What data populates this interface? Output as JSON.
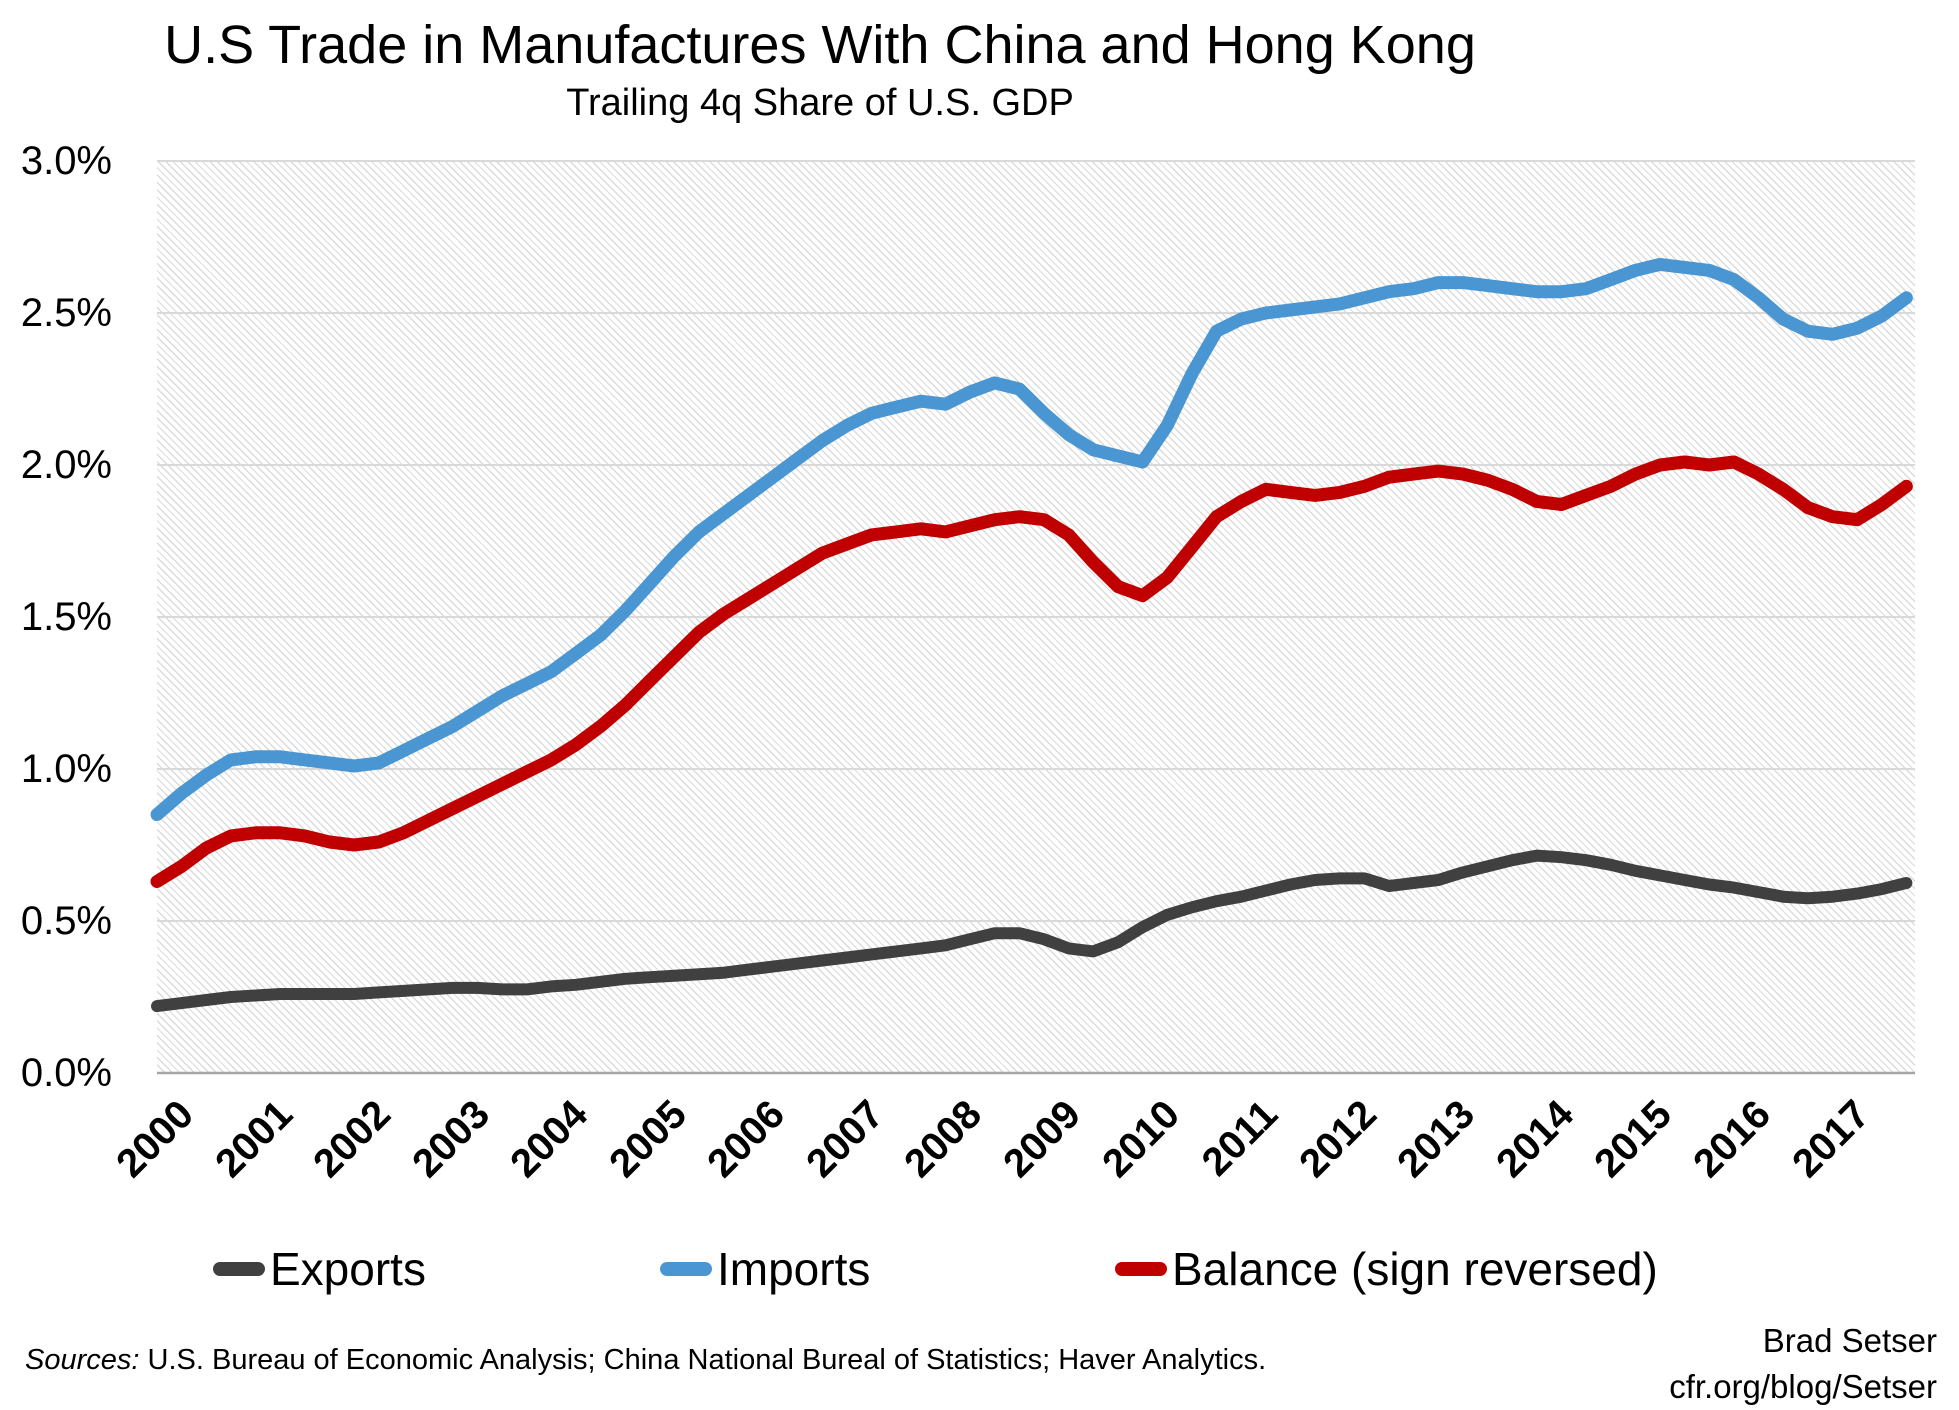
{
  "footer": {
    "sources_label": "Sources:",
    "sources_text": "U.S. Bureau of Economic Analysis; China National Bureal of Statistics; Haver Analytics.",
    "credit_line1": "Brad Setser",
    "credit_line2": "cfr.org/blog/Setser"
  },
  "chart_data": {
    "type": "line",
    "title": "U.S Trade in Manufactures With China and Hong Kong",
    "subtitle": "Trailing 4q Share of U.S. GDP",
    "xlabel": "",
    "ylabel": "",
    "ylim": [
      0.0,
      3.0
    ],
    "grid": "horizontal",
    "legend_position": "bottom",
    "plot_background": "diagonal-hatch",
    "axis_color": "#a6a6a6",
    "gridline_color": "#d9d9d9",
    "yticks": [
      "0.0%",
      "0.5%",
      "1.0%",
      "1.5%",
      "2.0%",
      "2.5%",
      "3.0%"
    ],
    "ytick_values": [
      0.0,
      0.5,
      1.0,
      1.5,
      2.0,
      2.5,
      3.0
    ],
    "xticks": [
      "2000",
      "2001",
      "2002",
      "2003",
      "2004",
      "2005",
      "2006",
      "2007",
      "2008",
      "2009",
      "2010",
      "2011",
      "2012",
      "2013",
      "2014",
      "2015",
      "2016",
      "2017"
    ],
    "categories": [
      "2000Q1",
      "2000Q2",
      "2000Q3",
      "2000Q4",
      "2001Q1",
      "2001Q2",
      "2001Q3",
      "2001Q4",
      "2002Q1",
      "2002Q2",
      "2002Q3",
      "2002Q4",
      "2003Q1",
      "2003Q2",
      "2003Q3",
      "2003Q4",
      "2004Q1",
      "2004Q2",
      "2004Q3",
      "2004Q4",
      "2005Q1",
      "2005Q2",
      "2005Q3",
      "2005Q4",
      "2006Q1",
      "2006Q2",
      "2006Q3",
      "2006Q4",
      "2007Q1",
      "2007Q2",
      "2007Q3",
      "2007Q4",
      "2008Q1",
      "2008Q2",
      "2008Q3",
      "2008Q4",
      "2009Q1",
      "2009Q2",
      "2009Q3",
      "2009Q4",
      "2010Q1",
      "2010Q2",
      "2010Q3",
      "2010Q4",
      "2011Q1",
      "2011Q2",
      "2011Q3",
      "2011Q4",
      "2012Q1",
      "2012Q2",
      "2012Q3",
      "2012Q4",
      "2013Q1",
      "2013Q2",
      "2013Q3",
      "2013Q4",
      "2014Q1",
      "2014Q2",
      "2014Q3",
      "2014Q4",
      "2015Q1",
      "2015Q2",
      "2015Q3",
      "2015Q4",
      "2016Q1",
      "2016Q2",
      "2016Q3",
      "2016Q4",
      "2017Q1",
      "2017Q2",
      "2017Q3",
      "2017Q4"
    ],
    "unit": "% of GDP",
    "series": [
      {
        "name": "Exports",
        "color": "#404040",
        "line_width": 12,
        "values": [
          0.22,
          0.23,
          0.24,
          0.25,
          0.255,
          0.26,
          0.26,
          0.26,
          0.26,
          0.265,
          0.27,
          0.275,
          0.28,
          0.28,
          0.275,
          0.275,
          0.285,
          0.29,
          0.3,
          0.31,
          0.315,
          0.32,
          0.325,
          0.33,
          0.34,
          0.35,
          0.36,
          0.37,
          0.38,
          0.39,
          0.4,
          0.41,
          0.42,
          0.44,
          0.46,
          0.46,
          0.44,
          0.41,
          0.4,
          0.43,
          0.48,
          0.52,
          0.545,
          0.565,
          0.58,
          0.6,
          0.62,
          0.635,
          0.64,
          0.64,
          0.615,
          0.625,
          0.635,
          0.66,
          0.68,
          0.7,
          0.715,
          0.71,
          0.7,
          0.685,
          0.665,
          0.65,
          0.635,
          0.62,
          0.61,
          0.595,
          0.58,
          0.575,
          0.58,
          0.59,
          0.605,
          0.625
        ]
      },
      {
        "name": "Imports",
        "color": "#4a96d2",
        "line_width": 13,
        "values": [
          0.85,
          0.92,
          0.98,
          1.03,
          1.04,
          1.04,
          1.03,
          1.02,
          1.01,
          1.02,
          1.06,
          1.1,
          1.14,
          1.19,
          1.24,
          1.28,
          1.32,
          1.38,
          1.44,
          1.52,
          1.61,
          1.7,
          1.78,
          1.84,
          1.9,
          1.96,
          2.02,
          2.08,
          2.13,
          2.17,
          2.19,
          2.21,
          2.2,
          2.24,
          2.27,
          2.25,
          2.17,
          2.1,
          2.05,
          2.03,
          2.01,
          2.13,
          2.3,
          2.44,
          2.48,
          2.5,
          2.51,
          2.52,
          2.53,
          2.55,
          2.57,
          2.58,
          2.6,
          2.6,
          2.59,
          2.58,
          2.57,
          2.57,
          2.58,
          2.61,
          2.64,
          2.66,
          2.65,
          2.64,
          2.61,
          2.55,
          2.48,
          2.44,
          2.43,
          2.45,
          2.49,
          2.55
        ]
      },
      {
        "name": "Balance (sign reversed)",
        "color": "#c00000",
        "line_width": 13,
        "values": [
          0.63,
          0.68,
          0.74,
          0.78,
          0.79,
          0.79,
          0.78,
          0.76,
          0.75,
          0.76,
          0.79,
          0.83,
          0.87,
          0.91,
          0.95,
          0.99,
          1.03,
          1.08,
          1.14,
          1.21,
          1.29,
          1.37,
          1.45,
          1.51,
          1.56,
          1.61,
          1.66,
          1.71,
          1.74,
          1.77,
          1.78,
          1.79,
          1.78,
          1.8,
          1.82,
          1.83,
          1.82,
          1.77,
          1.68,
          1.6,
          1.57,
          1.63,
          1.73,
          1.83,
          1.88,
          1.92,
          1.91,
          1.9,
          1.91,
          1.93,
          1.96,
          1.97,
          1.98,
          1.97,
          1.95,
          1.92,
          1.88,
          1.87,
          1.9,
          1.93,
          1.97,
          2.0,
          2.01,
          2.0,
          2.01,
          1.97,
          1.92,
          1.86,
          1.83,
          1.82,
          1.87,
          1.93
        ]
      }
    ]
  }
}
